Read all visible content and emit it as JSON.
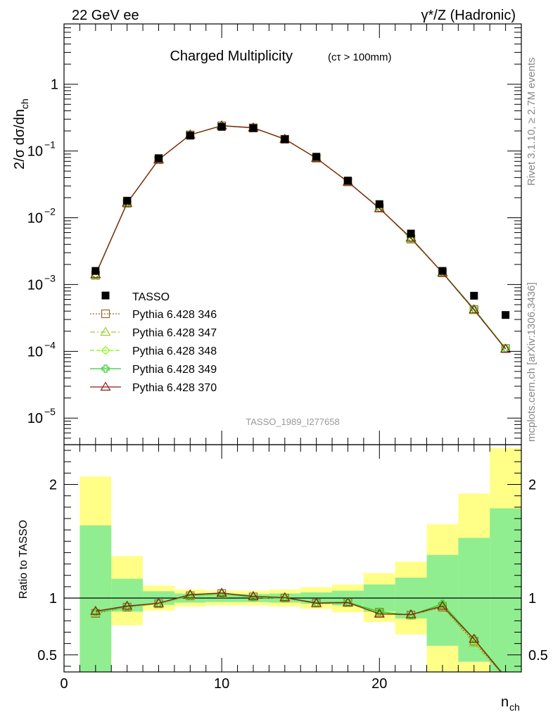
{
  "header": {
    "left": "22 GeV ee",
    "right": "γ*/Z (Hadronic)"
  },
  "side_labels": {
    "rivet": "Rivet 3.1.10, ≥ 2.7M events",
    "mcplots": "mcplots.cern.ch [arXiv:1306.3436]"
  },
  "chart_data": [
    {
      "type": "scatter",
      "panel": "main",
      "title_main": "Charged Multiplicity",
      "title_sub": "(cτ > 100mm)",
      "ylabel": "2/σ dσ/dn_ch",
      "ylabel_main": "2/σ dσ/dn",
      "ylabel_sub": "ch",
      "y_scale": "log",
      "ylim": [
        4e-06,
        8
      ],
      "xlim": [
        0,
        29
      ],
      "y_ticks": [
        {
          "value": 1e-05,
          "base": "10",
          "exp": "−5"
        },
        {
          "value": 0.0001,
          "base": "10",
          "exp": "−4"
        },
        {
          "value": 0.001,
          "base": "10",
          "exp": "−3"
        },
        {
          "value": 0.01,
          "base": "10",
          "exp": "−2"
        },
        {
          "value": 0.1,
          "base": "10",
          "exp": "−1"
        },
        {
          "value": 1,
          "base": "1",
          "exp": ""
        }
      ],
      "watermark": "TASSO_1989_I277658",
      "legend_position": "lower-left",
      "x": [
        2,
        4,
        6,
        8,
        10,
        12,
        14,
        16,
        18,
        20,
        22,
        24,
        26,
        28
      ],
      "data_series": {
        "name": "TASSO",
        "marker": "square",
        "color": "#000000",
        "values": [
          0.0016,
          0.018,
          0.078,
          0.17,
          0.23,
          0.22,
          0.15,
          0.082,
          0.036,
          0.016,
          0.0058,
          0.0016,
          0.00068,
          0.00035
        ]
      },
      "series": [
        {
          "name": "Pythia 6.428 346",
          "color": "#a0642a",
          "marker": "square-open",
          "dash": "2,2",
          "values": [
            0.00138,
            0.0165,
            0.074,
            0.174,
            0.238,
            0.222,
            0.15,
            0.078,
            0.0345,
            0.014,
            0.0048,
            0.0015,
            0.00042,
            0.00011
          ]
        },
        {
          "name": "Pythia 6.428 347",
          "color": "#9acd32",
          "marker": "triangle-open",
          "dash": "7,3,2,3",
          "values": [
            0.0014,
            0.0165,
            0.074,
            0.174,
            0.2375,
            0.2215,
            0.1498,
            0.0778,
            0.0344,
            0.0139,
            0.0048,
            0.0015,
            0.00041,
            0.00011
          ]
        },
        {
          "name": "Pythia 6.428 348",
          "color": "#7cfc00",
          "marker": "diamond-open",
          "dash": "6,3",
          "values": [
            0.00139,
            0.0166,
            0.0742,
            0.1742,
            0.238,
            0.2218,
            0.15,
            0.078,
            0.0346,
            0.014,
            0.0049,
            0.00152,
            0.00043,
            0.000112
          ]
        },
        {
          "name": "Pythia 6.428 349",
          "color": "#32cd32",
          "marker": "cross-open",
          "dash": "",
          "values": [
            0.0014,
            0.0165,
            0.0745,
            0.1745,
            0.2382,
            0.222,
            0.1505,
            0.0782,
            0.0347,
            0.014,
            0.0049,
            0.00152,
            0.00043,
            0.00011
          ]
        },
        {
          "name": "Pythia 6.428 370",
          "color": "#8b1a1a",
          "marker": "triangle-open",
          "dash": "",
          "values": [
            0.00142,
            0.0167,
            0.0745,
            0.175,
            0.24,
            0.223,
            0.151,
            0.0782,
            0.0345,
            0.0138,
            0.005,
            0.0015,
            0.00042,
            0.000108
          ]
        }
      ]
    },
    {
      "type": "line",
      "panel": "ratio",
      "ylabel": "Ratio to TASSO",
      "xlabel": "n_ch",
      "xlabel_main": "n",
      "xlabel_sub": "ch",
      "ylim": [
        0.35,
        2.35
      ],
      "xlim": [
        0,
        29
      ],
      "x_ticks": [
        0,
        10,
        20
      ],
      "y_ticks": [
        {
          "value": 0.5,
          "label": "0.5"
        },
        {
          "value": 1,
          "label": "1"
        },
        {
          "value": 2,
          "label": "2"
        }
      ],
      "bins": [
        [
          1,
          3
        ],
        [
          3,
          5
        ],
        [
          5,
          7
        ],
        [
          7,
          9
        ],
        [
          9,
          11
        ],
        [
          11,
          13
        ],
        [
          13,
          15
        ],
        [
          15,
          17
        ],
        [
          17,
          19
        ],
        [
          19,
          21
        ],
        [
          21,
          23
        ],
        [
          23,
          25
        ],
        [
          25,
          27
        ],
        [
          27,
          29
        ]
      ],
      "band_yellow": {
        "color": "#ffff88",
        "lo": [
          0.35,
          0.76,
          0.89,
          0.925,
          0.935,
          0.935,
          0.925,
          0.905,
          0.875,
          0.79,
          0.68,
          0.35,
          0.35,
          0.35
        ],
        "hi": [
          2.07,
          1.37,
          1.11,
          1.075,
          1.065,
          1.065,
          1.075,
          1.095,
          1.12,
          1.22,
          1.32,
          1.65,
          1.92,
          2.32
        ]
      },
      "band_green": {
        "color": "#90ee90",
        "lo": [
          0.35,
          0.88,
          0.94,
          0.96,
          0.965,
          0.965,
          0.96,
          0.95,
          0.935,
          0.88,
          0.82,
          0.58,
          0.44,
          0.35
        ],
        "hi": [
          1.64,
          1.17,
          1.06,
          1.04,
          1.035,
          1.035,
          1.04,
          1.05,
          1.065,
          1.12,
          1.18,
          1.38,
          1.53,
          1.79
        ]
      },
      "series": [
        {
          "name": "Pythia 6.428 346",
          "values": [
            0.865,
            0.92,
            0.95,
            1.02,
            1.04,
            1.01,
            1.0,
            0.955,
            0.96,
            0.875,
            0.85,
            0.92,
            0.62,
            0.3
          ]
        },
        {
          "name": "Pythia 6.428 347",
          "values": [
            0.87,
            0.92,
            0.95,
            1.02,
            1.035,
            1.005,
            0.998,
            0.95,
            0.955,
            0.87,
            0.845,
            0.925,
            0.6,
            0.3
          ]
        },
        {
          "name": "Pythia 6.428 348",
          "values": [
            0.875,
            0.925,
            0.952,
            1.022,
            1.04,
            1.008,
            1.0,
            0.955,
            0.962,
            0.875,
            0.848,
            0.94,
            0.63,
            0.31
          ]
        },
        {
          "name": "Pythia 6.428 349",
          "values": [
            0.875,
            0.925,
            0.955,
            1.025,
            1.04,
            1.01,
            1.003,
            0.96,
            0.965,
            0.88,
            0.85,
            0.95,
            0.64,
            0.31
          ]
        },
        {
          "name": "Pythia 6.428 370",
          "values": [
            0.885,
            0.93,
            0.955,
            1.03,
            1.045,
            1.015,
            1.005,
            0.955,
            0.96,
            0.86,
            0.855,
            0.93,
            0.64,
            0.3
          ]
        }
      ]
    }
  ]
}
